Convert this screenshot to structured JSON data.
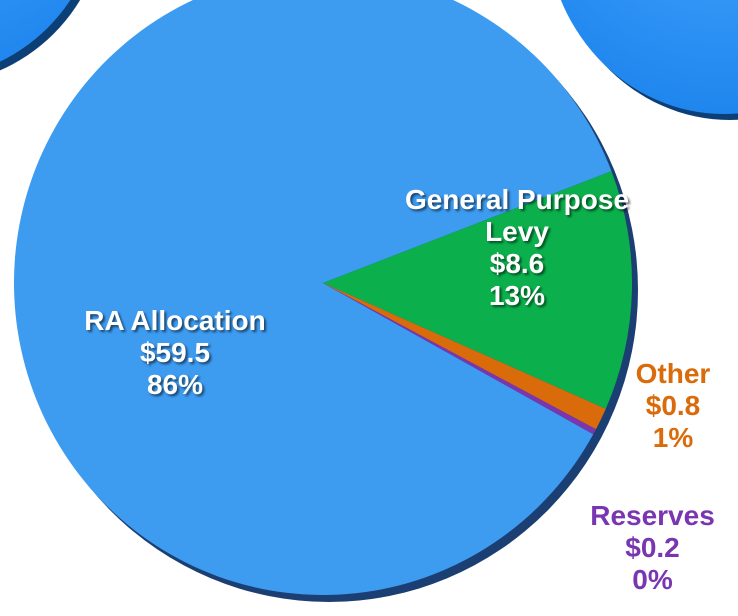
{
  "chart_data": {
    "type": "pie",
    "categories": [
      "RA Allocation",
      "General Purpose Levy",
      "Other",
      "Reserves"
    ],
    "values": [
      59.5,
      8.6,
      0.8,
      0.2
    ],
    "value_labels": [
      "$59.5",
      "$8.6",
      "$0.8",
      "$0.2"
    ],
    "percent_labels": [
      "86%",
      "13%",
      "1%",
      "0%"
    ],
    "colors": [
      "#3d9bf0",
      "#0bb04c",
      "#d96b0b",
      "#7a35b0"
    ],
    "label_colors": [
      "#ffffff",
      "#ffffff",
      "#d96b0b",
      "#7a35b0"
    ]
  }
}
